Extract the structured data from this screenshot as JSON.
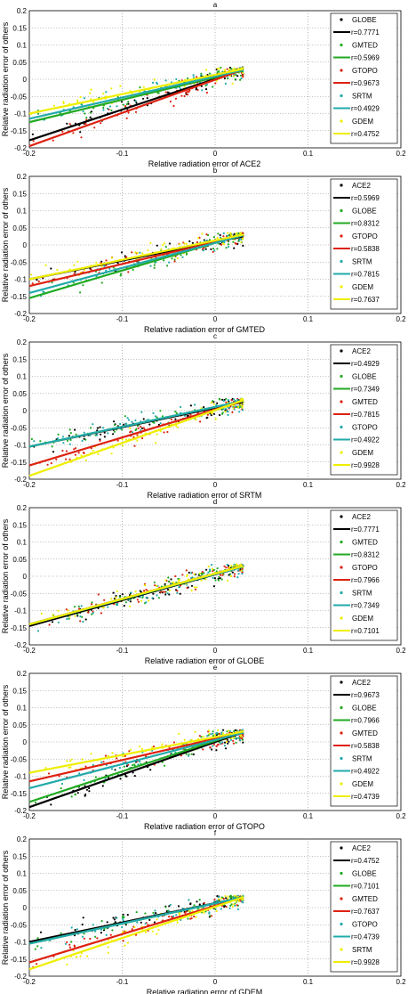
{
  "colors": {
    "black": "#000000",
    "green": "#22aa22",
    "red": "#dd2211",
    "cyan": "#22aaaa",
    "yellow": "#eeee00"
  },
  "chart_data": [
    {
      "type": "scatter",
      "title": "a",
      "xlabel": "Relative radiation error of ACE2",
      "ylabel": "Relative radiation error of others",
      "xlim": [
        -0.2,
        0.2
      ],
      "ylim": [
        -0.2,
        0.2
      ],
      "xticks": [
        "-0.2",
        "-0.1",
        "0",
        "0.1",
        "0.2"
      ],
      "yticks": [
        "-0.2",
        "-0.15",
        "-0.1",
        "-0.05",
        "0",
        "0.05",
        "0.1",
        "0.15",
        "0.2"
      ],
      "grid": true,
      "legend_position": "right",
      "x_data_range": [
        -0.2,
        0.03
      ],
      "series": [
        {
          "name": "GLOBE",
          "r": "r=0.7771",
          "color": "#000000",
          "fit": [
            [
              -0.2,
              -0.178
            ],
            [
              0.03,
              0.028
            ]
          ]
        },
        {
          "name": "GMTED",
          "r": "r=0.5969",
          "color": "#22aa22",
          "fit": [
            [
              -0.2,
              -0.125
            ],
            [
              0.03,
              0.025
            ]
          ]
        },
        {
          "name": "GTOPO",
          "r": "r=0.9673",
          "color": "#dd2211",
          "fit": [
            [
              -0.2,
              -0.195
            ],
            [
              0.03,
              0.028
            ]
          ]
        },
        {
          "name": "SRTM",
          "r": "r=0.4929",
          "color": "#22aaaa",
          "fit": [
            [
              -0.2,
              -0.115
            ],
            [
              0.03,
              0.027
            ]
          ]
        },
        {
          "name": "GDEM",
          "r": "r=0.4752",
          "color": "#eeee00",
          "fit": [
            [
              -0.2,
              -0.1
            ],
            [
              0.03,
              0.03
            ]
          ]
        }
      ]
    },
    {
      "type": "scatter",
      "title": "b",
      "xlabel": "Relative radiation error of GMTED",
      "ylabel": "Relative radiation error of others",
      "xlim": [
        -0.2,
        0.2
      ],
      "ylim": [
        -0.2,
        0.2
      ],
      "xticks": [
        "-0.2",
        "-0.1",
        "0",
        "0.1",
        "0.2"
      ],
      "yticks": [
        "-0.2",
        "-0.15",
        "-0.1",
        "-0.05",
        "0",
        "0.05",
        "0.1",
        "0.15",
        "0.2"
      ],
      "grid": true,
      "legend_position": "right",
      "x_data_range": [
        -0.2,
        0.03
      ],
      "series": [
        {
          "name": "ACE2",
          "r": "r=0.5969",
          "color": "#000000",
          "fit": [
            [
              -0.2,
              -0.1
            ],
            [
              0.03,
              0.025
            ]
          ]
        },
        {
          "name": "GLOBE",
          "r": "r=0.8312",
          "color": "#22aa22",
          "fit": [
            [
              -0.2,
              -0.155
            ],
            [
              0.03,
              0.03
            ]
          ]
        },
        {
          "name": "GTOPO",
          "r": "r=0.5838",
          "color": "#dd2211",
          "fit": [
            [
              -0.2,
              -0.12
            ],
            [
              0.03,
              0.028
            ]
          ]
        },
        {
          "name": "SRTM",
          "r": "r=0.7815",
          "color": "#22aaaa",
          "fit": [
            [
              -0.2,
              -0.14
            ],
            [
              0.03,
              0.028
            ]
          ]
        },
        {
          "name": "GDEM",
          "r": "r=0.7637",
          "color": "#eeee00",
          "fit": [
            [
              -0.2,
              -0.1
            ],
            [
              0.03,
              0.03
            ]
          ]
        }
      ]
    },
    {
      "type": "scatter",
      "title": "c",
      "xlabel": "Relative radiation error of SRTM",
      "ylabel": "Relative radiation error of others",
      "xlim": [
        -0.2,
        0.2
      ],
      "ylim": [
        -0.2,
        0.2
      ],
      "xticks": [
        "-0.2",
        "-0.1",
        "0",
        "0.1",
        "0.2"
      ],
      "yticks": [
        "-0.2",
        "-0.15",
        "-0.1",
        "-0.05",
        "0",
        "0.05",
        "0.1",
        "0.15",
        "0.2"
      ],
      "grid": true,
      "legend_position": "right",
      "x_data_range": [
        -0.2,
        0.03
      ],
      "series": [
        {
          "name": "ACE2",
          "r": "r=0.4929",
          "color": "#000000",
          "fit": [
            [
              -0.2,
              -0.105
            ],
            [
              0.03,
              0.025
            ]
          ]
        },
        {
          "name": "GLOBE",
          "r": "r=0.7349",
          "color": "#22aa22",
          "fit": [
            [
              -0.2,
              -0.105
            ],
            [
              0.03,
              0.028
            ]
          ]
        },
        {
          "name": "GMTED",
          "r": "r=0.7815",
          "color": "#dd2211",
          "fit": [
            [
              -0.2,
              -0.16
            ],
            [
              0.03,
              0.028
            ]
          ]
        },
        {
          "name": "GTOPO",
          "r": "r=0.4922",
          "color": "#22aaaa",
          "fit": [
            [
              -0.2,
              -0.105
            ],
            [
              0.03,
              0.028
            ]
          ]
        },
        {
          "name": "GDEM",
          "r": "r=0.9928",
          "color": "#eeee00",
          "fit": [
            [
              -0.2,
              -0.19
            ],
            [
              0.03,
              0.03
            ]
          ]
        }
      ]
    },
    {
      "type": "scatter",
      "title": "d",
      "xlabel": "Relative radiation error of GLOBE",
      "ylabel": "Relative radiation error of others",
      "xlim": [
        -0.2,
        0.2
      ],
      "ylim": [
        -0.2,
        0.2
      ],
      "xticks": [
        "-0.2",
        "-0.1",
        "0",
        "0.1",
        "0.2"
      ],
      "yticks": [
        "-0.2",
        "-0.15",
        "-0.1",
        "-0.05",
        "0",
        "0.05",
        "0.1",
        "0.15",
        "0.2"
      ],
      "grid": true,
      "legend_position": "right",
      "x_data_range": [
        -0.2,
        0.03
      ],
      "series": [
        {
          "name": "ACE2",
          "r": "r=0.7771",
          "color": "#000000",
          "fit": [
            [
              -0.2,
              -0.145
            ],
            [
              0.03,
              0.028
            ]
          ]
        },
        {
          "name": "GMTED",
          "r": "r=0.8312",
          "color": "#22aa22",
          "fit": [
            [
              -0.2,
              -0.14
            ],
            [
              0.03,
              0.03
            ]
          ]
        },
        {
          "name": "GTOPO",
          "r": "r=0.7966",
          "color": "#dd2211",
          "fit": [
            [
              -0.2,
              -0.14
            ],
            [
              0.03,
              0.03
            ]
          ]
        },
        {
          "name": "SRTM",
          "r": "r=0.7349",
          "color": "#22aaaa",
          "fit": [
            [
              -0.2,
              -0.14
            ],
            [
              0.03,
              0.028
            ]
          ]
        },
        {
          "name": "GDEM",
          "r": "r=0.7101",
          "color": "#eeee00",
          "fit": [
            [
              -0.2,
              -0.14
            ],
            [
              0.03,
              0.03
            ]
          ]
        }
      ]
    },
    {
      "type": "scatter",
      "title": "e",
      "xlabel": "Relative radiation error of GTOPO",
      "ylabel": "Relative radiation error of others",
      "xlim": [
        -0.2,
        0.2
      ],
      "ylim": [
        -0.2,
        0.2
      ],
      "xticks": [
        "-0.2",
        "-0.1",
        "0",
        "0.1",
        "0.2"
      ],
      "yticks": [
        "-0.2",
        "-0.15",
        "-0.1",
        "-0.05",
        "0",
        "0.05",
        "0.1",
        "0.15",
        "0.2"
      ],
      "grid": true,
      "legend_position": "right",
      "x_data_range": [
        -0.2,
        0.03
      ],
      "series": [
        {
          "name": "ACE2",
          "r": "r=0.9673",
          "color": "#000000",
          "fit": [
            [
              -0.2,
              -0.19
            ],
            [
              0.03,
              0.028
            ]
          ]
        },
        {
          "name": "GLOBE",
          "r": "r=0.7966",
          "color": "#22aa22",
          "fit": [
            [
              -0.2,
              -0.175
            ],
            [
              0.03,
              0.03
            ]
          ]
        },
        {
          "name": "GMTED",
          "r": "r=0.5838",
          "color": "#dd2211",
          "fit": [
            [
              -0.2,
              -0.115
            ],
            [
              0.03,
              0.028
            ]
          ]
        },
        {
          "name": "SRTM",
          "r": "r=0.4922",
          "color": "#22aaaa",
          "fit": [
            [
              -0.2,
              -0.135
            ],
            [
              0.03,
              0.027
            ]
          ]
        },
        {
          "name": "GDEM",
          "r": "r=0.4739",
          "color": "#eeee00",
          "fit": [
            [
              -0.2,
              -0.09
            ],
            [
              0.03,
              0.03
            ]
          ]
        }
      ]
    },
    {
      "type": "scatter",
      "title": "f",
      "xlabel": "Relative radiation error of GDEM",
      "ylabel": "Relative radiation error of others",
      "xlim": [
        -0.2,
        0.2
      ],
      "ylim": [
        -0.2,
        0.2
      ],
      "xticks": [
        "-0.2",
        "-0.1",
        "0",
        "0.1",
        "0.2"
      ],
      "yticks": [
        "-0.2",
        "-0.15",
        "-0.1",
        "-0.05",
        "0",
        "0.05",
        "0.1",
        "0.15",
        "0.2"
      ],
      "grid": true,
      "legend_position": "right",
      "x_data_range": [
        -0.2,
        0.03
      ],
      "series": [
        {
          "name": "ACE2",
          "r": "r=0.4752",
          "color": "#000000",
          "fit": [
            [
              -0.2,
              -0.1
            ],
            [
              0.03,
              0.03
            ]
          ]
        },
        {
          "name": "GLOBE",
          "r": "r=0.7101",
          "color": "#22aa22",
          "fit": [
            [
              -0.2,
              -0.105
            ],
            [
              0.03,
              0.03
            ]
          ]
        },
        {
          "name": "GMTED",
          "r": "r=0.7637",
          "color": "#dd2211",
          "fit": [
            [
              -0.2,
              -0.16
            ],
            [
              0.03,
              0.03
            ]
          ]
        },
        {
          "name": "GTOPO",
          "r": "r=0.4739",
          "color": "#22aaaa",
          "fit": [
            [
              -0.2,
              -0.105
            ],
            [
              0.03,
              0.03
            ]
          ]
        },
        {
          "name": "SRTM",
          "r": "r=0.9928",
          "color": "#eeee00",
          "fit": [
            [
              -0.2,
              -0.18
            ],
            [
              0.03,
              0.03
            ]
          ]
        }
      ]
    }
  ]
}
